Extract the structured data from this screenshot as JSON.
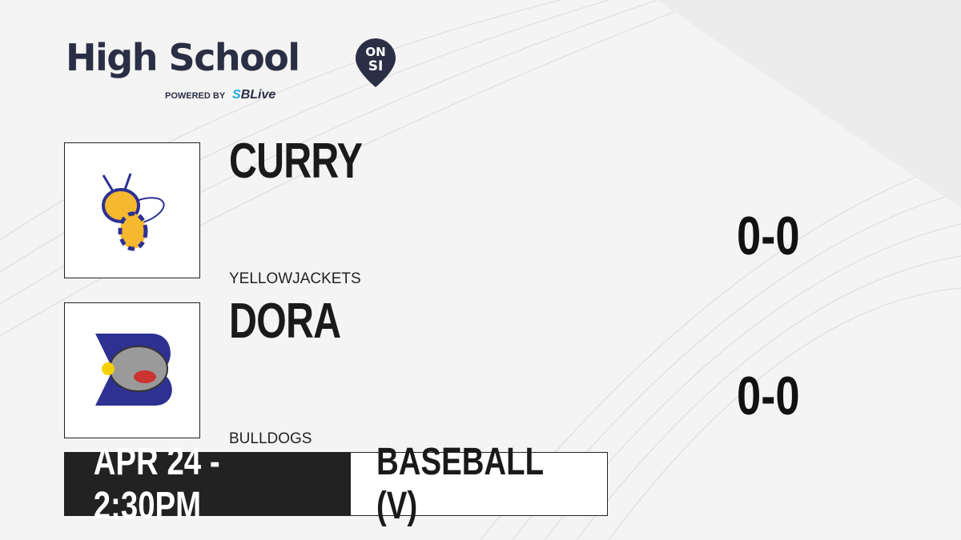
{
  "brand": {
    "title": "High School",
    "badge_top": "ON",
    "badge_bottom": "SI",
    "powered_by": "POWERED BY",
    "partner_a": "S",
    "partner_b": "BLive"
  },
  "teams": [
    {
      "name": "CURRY",
      "mascot": "YELLOWJACKETS",
      "score": "0-0",
      "logo": "yellowjacket-logo"
    },
    {
      "name": "DORA",
      "mascot": "BULLDOGS",
      "score": "0-0",
      "logo": "bulldog-logo"
    }
  ],
  "game": {
    "datetime": "APR 24 - 2:30PM",
    "sport": "BASEBALL (V)"
  },
  "colors": {
    "brand": "#2b2f45",
    "accent": "#1ea7e1",
    "dark": "#222222"
  }
}
